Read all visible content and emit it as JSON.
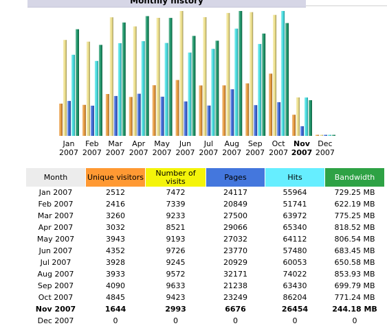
{
  "section_title": "Monthly history",
  "colors": {
    "unique": "#ff9933",
    "visits": "#f4f40a",
    "pages": "#4477dd",
    "hits": "#66eeff",
    "bandwidth": "#2ea245"
  },
  "table": {
    "headers": {
      "month": "Month",
      "unique": "Unique visitors",
      "visits": "Number of visits",
      "pages": "Pages",
      "hits": "Hits",
      "bandwidth": "Bandwidth"
    },
    "rows": [
      {
        "month": "Jan 2007",
        "unique": "2512",
        "visits": "7472",
        "pages": "24117",
        "hits": "55964",
        "bandwidth": "729.25 MB",
        "current": false
      },
      {
        "month": "Feb 2007",
        "unique": "2416",
        "visits": "7339",
        "pages": "20849",
        "hits": "51741",
        "bandwidth": "622.19 MB",
        "current": false
      },
      {
        "month": "Mar 2007",
        "unique": "3260",
        "visits": "9233",
        "pages": "27500",
        "hits": "63972",
        "bandwidth": "775.25 MB",
        "current": false
      },
      {
        "month": "Apr 2007",
        "unique": "3032",
        "visits": "8521",
        "pages": "29066",
        "hits": "65340",
        "bandwidth": "818.52 MB",
        "current": false
      },
      {
        "month": "May 2007",
        "unique": "3943",
        "visits": "9193",
        "pages": "27032",
        "hits": "64112",
        "bandwidth": "806.54 MB",
        "current": false
      },
      {
        "month": "Jun 2007",
        "unique": "4352",
        "visits": "9726",
        "pages": "23770",
        "hits": "57480",
        "bandwidth": "683.45 MB",
        "current": false
      },
      {
        "month": "Jul 2007",
        "unique": "3928",
        "visits": "9245",
        "pages": "20929",
        "hits": "60053",
        "bandwidth": "650.58 MB",
        "current": false
      },
      {
        "month": "Aug 2007",
        "unique": "3933",
        "visits": "9572",
        "pages": "32171",
        "hits": "74022",
        "bandwidth": "853.93 MB",
        "current": false
      },
      {
        "month": "Sep 2007",
        "unique": "4090",
        "visits": "9633",
        "pages": "21238",
        "hits": "63430",
        "bandwidth": "699.79 MB",
        "current": false
      },
      {
        "month": "Oct 2007",
        "unique": "4845",
        "visits": "9423",
        "pages": "23249",
        "hits": "86204",
        "bandwidth": "771.24 MB",
        "current": false
      },
      {
        "month": "Nov 2007",
        "unique": "1644",
        "visits": "2993",
        "pages": "6676",
        "hits": "26454",
        "bandwidth": "244.18 MB",
        "current": true
      },
      {
        "month": "Dec 2007",
        "unique": "0",
        "visits": "0",
        "pages": "0",
        "hits": "0",
        "bandwidth": "0",
        "current": false
      }
    ]
  },
  "chart_data": {
    "type": "bar",
    "categories": [
      {
        "month": "Jan",
        "year": "2007"
      },
      {
        "month": "Feb",
        "year": "2007"
      },
      {
        "month": "Mar",
        "year": "2007"
      },
      {
        "month": "Apr",
        "year": "2007"
      },
      {
        "month": "May",
        "year": "2007"
      },
      {
        "month": "Jun",
        "year": "2007"
      },
      {
        "month": "Jul",
        "year": "2007"
      },
      {
        "month": "Aug",
        "year": "2007"
      },
      {
        "month": "Sep",
        "year": "2007"
      },
      {
        "month": "Oct",
        "year": "2007"
      },
      {
        "month": "Nov",
        "year": "2007"
      },
      {
        "month": "Dec",
        "year": "2007"
      }
    ],
    "highlight_category": "Nov",
    "series": [
      {
        "key": "unique",
        "color": "#e89a3c",
        "scale_group": "visitors",
        "values": [
          2512,
          2416,
          3260,
          3032,
          3943,
          4352,
          3928,
          3933,
          4090,
          4845,
          1644,
          0
        ]
      },
      {
        "key": "visits",
        "color": "#eee08a",
        "scale_group": "visitors",
        "values": [
          7472,
          7339,
          9233,
          8521,
          9193,
          9726,
          9245,
          9572,
          9633,
          9423,
          2993,
          0
        ]
      },
      {
        "key": "pages",
        "color": "#3b66d6",
        "scale_group": "traffic",
        "values": [
          24117,
          20849,
          27500,
          29066,
          27032,
          23770,
          20929,
          32171,
          21238,
          23249,
          6676,
          0
        ]
      },
      {
        "key": "hits",
        "color": "#44dde0",
        "scale_group": "traffic",
        "values": [
          55964,
          51741,
          63972,
          65340,
          64112,
          57480,
          60053,
          74022,
          63430,
          86204,
          26454,
          0
        ]
      },
      {
        "key": "bandwidth",
        "color": "#1a9466",
        "scale_group": "bandwidth",
        "values": [
          729.25,
          622.19,
          775.25,
          818.52,
          806.54,
          683.45,
          650.58,
          853.93,
          699.79,
          771.24,
          244.18,
          0
        ]
      }
    ],
    "xlabel": "",
    "ylabel": ""
  }
}
